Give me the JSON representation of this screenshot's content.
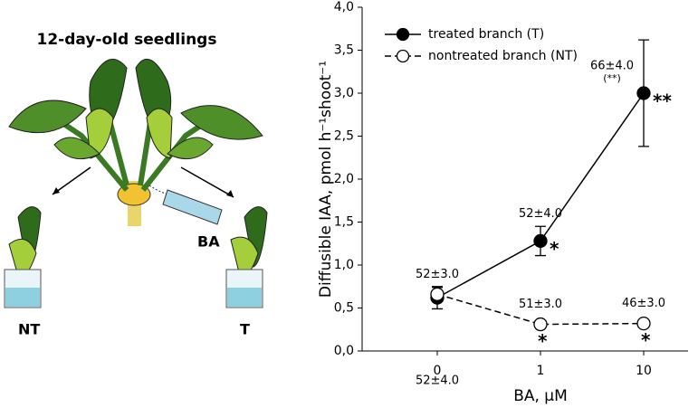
{
  "illustration": {
    "title": "12-day-old seedlings",
    "left_label": "NT",
    "right_label": "T",
    "treatment_label": "BA"
  },
  "chart_data": {
    "type": "line",
    "x_label": "BA, μM",
    "y_label": "Diffusible IAA, pmol h⁻¹shoot⁻¹",
    "categories": [
      "0",
      "1",
      "10"
    ],
    "ylim": [
      0,
      4
    ],
    "yticks": [
      {
        "value": 0,
        "label": "0,0"
      },
      {
        "value": 0.5,
        "label": "0,5"
      },
      {
        "value": 1,
        "label": "1,0"
      },
      {
        "value": 1.5,
        "label": "1,5"
      },
      {
        "value": 2,
        "label": "2,0"
      },
      {
        "value": 2.5,
        "label": "2,5"
      },
      {
        "value": 3,
        "label": "3,0"
      },
      {
        "value": 3.5,
        "label": "3,5"
      },
      {
        "value": 4,
        "label": "4,0"
      }
    ],
    "legend": "upper-left",
    "series": [
      {
        "name": "treated branch (T)",
        "color": "#000000",
        "marker_fill": "#000000",
        "line_style": "solid",
        "values": [
          0.62,
          1.28,
          3.0
        ],
        "errors": [
          0.13,
          0.17,
          0.62
        ],
        "point_labels": [
          "52±4.0",
          "52±4.0",
          "66±4.0"
        ],
        "point_notes": [
          null,
          null,
          "(**)"
        ],
        "significance": [
          null,
          "*",
          "**"
        ]
      },
      {
        "name": "nontreated branch (NT)",
        "color": "#000000",
        "marker_fill": "#ffffff",
        "line_style": "dashed",
        "values": [
          0.66,
          0.31,
          0.32
        ],
        "errors": [
          0.08,
          0.03,
          0.03
        ],
        "point_labels": [
          "52±3.0",
          "51±3.0",
          "46±3.0"
        ],
        "point_notes": [
          null,
          null,
          null
        ],
        "significance": [
          null,
          "*",
          "*"
        ]
      }
    ]
  }
}
